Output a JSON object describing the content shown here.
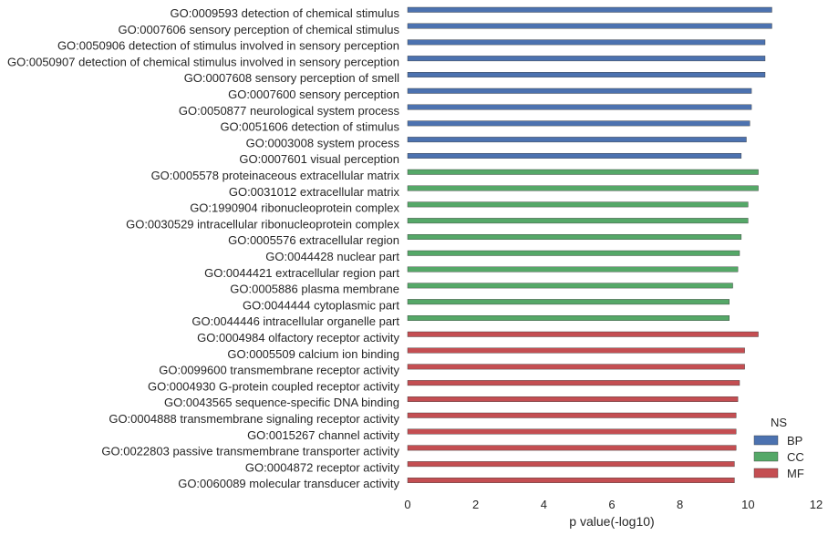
{
  "chart_data": {
    "type": "bar",
    "orientation": "horizontal",
    "categories": [
      "GO:0009593 detection of chemical stimulus",
      "GO:0007606 sensory perception of chemical stimulus",
      "GO:0050906 detection of stimulus involved in sensory perception",
      "GO:0050907 detection of chemical stimulus involved in sensory perception",
      "GO:0007608 sensory perception of smell",
      "GO:0007600 sensory perception",
      "GO:0050877 neurological system process",
      "GO:0051606 detection of stimulus",
      "GO:0003008 system process",
      "GO:0007601 visual perception",
      "GO:0005578 proteinaceous extracellular matrix",
      "GO:0031012 extracellular matrix",
      "GO:1990904 ribonucleoprotein complex",
      "GO:0030529 intracellular ribonucleoprotein complex",
      "GO:0005576 extracellular region",
      "GO:0044428 nuclear part",
      "GO:0044421 extracellular region part",
      "GO:0005886 plasma membrane",
      "GO:0044444 cytoplasmic part",
      "GO:0044446 intracellular organelle part",
      "GO:0004984 olfactory receptor activity",
      "GO:0005509 calcium ion binding",
      "GO:0099600 transmembrane receptor activity",
      "GO:0004930 G-protein coupled receptor activity",
      "GO:0043565 sequence-specific DNA binding",
      "GO:0004888 transmembrane signaling receptor activity",
      "GO:0015267 channel activity",
      "GO:0022803 passive transmembrane transporter activity",
      "GO:0004872 receptor activity",
      "GO:0060089 molecular transducer activity"
    ],
    "values": [
      10.7,
      10.7,
      10.5,
      10.5,
      10.5,
      10.1,
      10.1,
      10.05,
      9.95,
      9.8,
      10.3,
      10.3,
      10.0,
      10.0,
      9.8,
      9.75,
      9.7,
      9.55,
      9.45,
      9.45,
      10.3,
      9.9,
      9.9,
      9.75,
      9.7,
      9.65,
      9.65,
      9.65,
      9.6,
      9.6
    ],
    "groups": [
      "BP",
      "BP",
      "BP",
      "BP",
      "BP",
      "BP",
      "BP",
      "BP",
      "BP",
      "BP",
      "CC",
      "CC",
      "CC",
      "CC",
      "CC",
      "CC",
      "CC",
      "CC",
      "CC",
      "CC",
      "MF",
      "MF",
      "MF",
      "MF",
      "MF",
      "MF",
      "MF",
      "MF",
      "MF",
      "MF"
    ],
    "legend": {
      "title": "NS",
      "entries": [
        {
          "name": "BP",
          "color": "#4c72b0"
        },
        {
          "name": "CC",
          "color": "#55a868"
        },
        {
          "name": "MF",
          "color": "#c44e52"
        }
      ],
      "placement": "bottom-right"
    },
    "xlabel": "p value(-log10)",
    "ylabel": "",
    "xlim": [
      0,
      12
    ],
    "xticks": [
      0,
      2,
      4,
      6,
      8,
      10,
      12
    ],
    "grid": false
  }
}
